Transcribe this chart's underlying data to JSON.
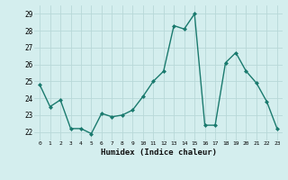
{
  "x": [
    0,
    1,
    2,
    3,
    4,
    5,
    6,
    7,
    8,
    9,
    10,
    11,
    12,
    13,
    14,
    15,
    16,
    17,
    18,
    19,
    20,
    21,
    22,
    23
  ],
  "y": [
    24.8,
    23.5,
    23.9,
    22.2,
    22.2,
    21.9,
    23.1,
    22.9,
    23.0,
    23.3,
    24.1,
    25.0,
    25.6,
    28.3,
    28.1,
    29.0,
    22.4,
    22.4,
    26.1,
    26.7,
    25.6,
    24.9,
    23.8,
    22.2
  ],
  "line_color": "#1a7a6e",
  "marker": "D",
  "marker_size": 2,
  "bg_color": "#d4eeee",
  "grid_color": "#b8d8d8",
  "xlabel": "Humidex (Indice chaleur)",
  "ylim": [
    21.5,
    29.5
  ],
  "xlim": [
    -0.5,
    23.5
  ],
  "yticks": [
    22,
    23,
    24,
    25,
    26,
    27,
    28,
    29
  ],
  "xticks": [
    0,
    1,
    2,
    3,
    4,
    5,
    6,
    7,
    8,
    9,
    10,
    11,
    12,
    13,
    14,
    15,
    16,
    17,
    18,
    19,
    20,
    21,
    22,
    23
  ]
}
